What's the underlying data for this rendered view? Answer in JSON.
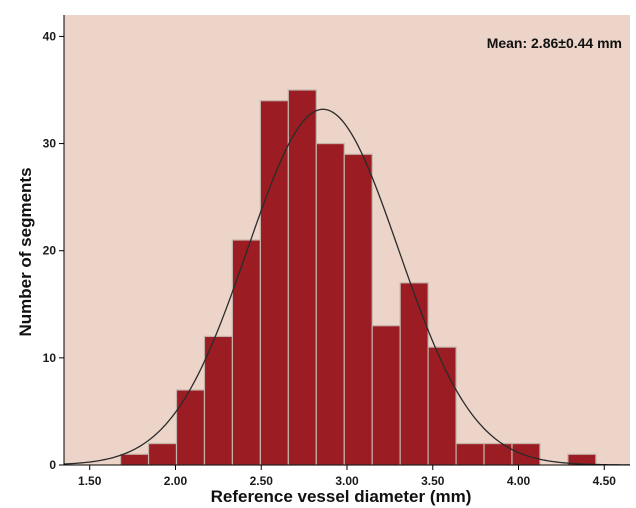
{
  "chart_data": {
    "type": "bar",
    "subtype": "histogram",
    "xlabel": "Reference vessel diameter (mm)",
    "ylabel": "Number of segments",
    "annotation": "Mean: 2.86±0.44 mm",
    "xlim": [
      1.35,
      4.65
    ],
    "ylim": [
      0,
      42
    ],
    "x_ticks": [
      1.5,
      2.0,
      2.5,
      3.0,
      3.5,
      4.0,
      4.5
    ],
    "x_tick_labels": [
      "1.50",
      "2.00",
      "2.50",
      "3.00",
      "3.50",
      "4.00",
      "4.50"
    ],
    "y_ticks": [
      0,
      10,
      20,
      30,
      40
    ],
    "y_tick_labels": [
      "0",
      "10",
      "20",
      "30",
      "40"
    ],
    "bin_width": 0.163,
    "bins": [
      {
        "start": 1.68,
        "count": 1
      },
      {
        "start": 1.843,
        "count": 2
      },
      {
        "start": 2.006,
        "count": 7
      },
      {
        "start": 2.169,
        "count": 12
      },
      {
        "start": 2.332,
        "count": 21
      },
      {
        "start": 2.495,
        "count": 34
      },
      {
        "start": 2.658,
        "count": 35
      },
      {
        "start": 2.821,
        "count": 30
      },
      {
        "start": 2.984,
        "count": 29
      },
      {
        "start": 3.147,
        "count": 13
      },
      {
        "start": 3.31,
        "count": 17
      },
      {
        "start": 3.473,
        "count": 11
      },
      {
        "start": 3.636,
        "count": 2
      },
      {
        "start": 3.799,
        "count": 2
      },
      {
        "start": 3.962,
        "count": 2
      },
      {
        "start": 4.288,
        "count": 1
      }
    ],
    "normal_curve": {
      "mean": 2.86,
      "sd": 0.44,
      "peak": 33.2
    },
    "grid": false,
    "colors": {
      "plot_background": "#ecd4c9",
      "bar_fill": "#9b1c22",
      "bar_edge": "#c4b3aa",
      "curve": "#2b2b2b"
    }
  }
}
